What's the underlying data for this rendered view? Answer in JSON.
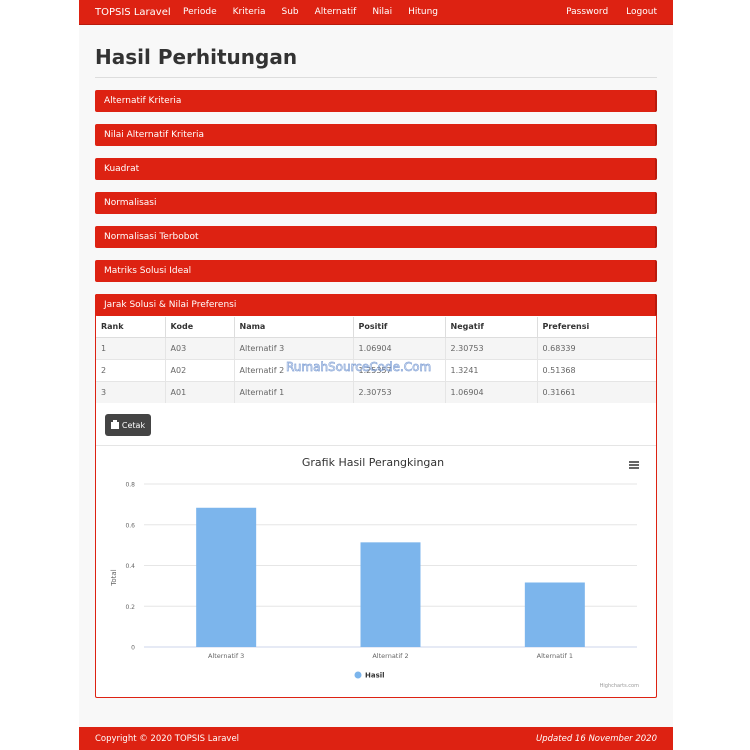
{
  "navbar": {
    "brand": "TOPSIS Laravel",
    "items": [
      "Periode",
      "Kriteria",
      "Sub",
      "Alternatif",
      "Nilai",
      "Hitung"
    ],
    "right": [
      "Password",
      "Logout"
    ]
  },
  "page": {
    "title": "Hasil Perhitungan"
  },
  "panels": [
    "Alternatif Kriteria",
    "Nilai Alternatif Kriteria",
    "Kuadrat",
    "Normalisasi",
    "Normalisasi Terbobot",
    "Matriks Solusi Ideal"
  ],
  "result_panel": {
    "title": "Jarak Solusi & Nilai Preferensi",
    "columns": [
      "Rank",
      "Kode",
      "Nama",
      "Positif",
      "Negatif",
      "Preferensi"
    ],
    "rows": [
      [
        "1",
        "A03",
        "Alternatif 3",
        "1.06904",
        "2.30753",
        "0.68339"
      ],
      [
        "2",
        "A02",
        "Alternatif 2",
        "1.25357",
        "1.3241",
        "0.51368"
      ],
      [
        "3",
        "A01",
        "Alternatif 1",
        "2.30753",
        "1.06904",
        "0.31661"
      ]
    ],
    "print_label": "Cetak",
    "watermark": "RumahSourceCode.Com"
  },
  "chart_data": {
    "type": "bar",
    "title": "Grafik Hasil Perangkingan",
    "ylabel": "Total",
    "xlabel": "",
    "categories": [
      "Alternatif 3",
      "Alternatif 2",
      "Alternatif 1"
    ],
    "series": [
      {
        "name": "Hasil",
        "values": [
          0.68339,
          0.51368,
          0.31661
        ],
        "color": "#7cb5ec"
      }
    ],
    "ylim": [
      0,
      0.8
    ],
    "yticks": [
      "0",
      "0.2",
      "0.4",
      "0.6",
      "0.8"
    ],
    "grid": true,
    "legend": "bottom-center",
    "credits": "Highcharts.com"
  },
  "footer": {
    "left": "Copyright © 2020 TOPSIS Laravel",
    "right": "Updated 16 November 2020"
  },
  "colors": {
    "brand": "#dd2212",
    "bar": "#7cb5ec"
  }
}
